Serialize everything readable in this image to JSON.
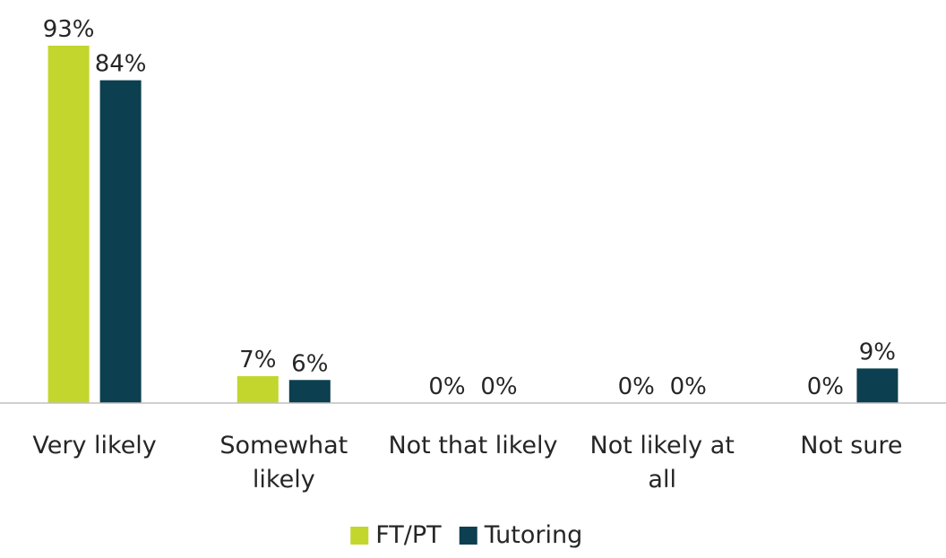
{
  "chart_data": {
    "type": "bar",
    "categories": [
      [
        "Very likely"
      ],
      [
        "Somewhat",
        "likely"
      ],
      [
        "Not that likely"
      ],
      [
        "Not likely at",
        "all"
      ],
      [
        "Not sure"
      ]
    ],
    "series": [
      {
        "name": "FT/PT",
        "color": "#c2d62e",
        "values": [
          93,
          7,
          0,
          0,
          0
        ],
        "labels": [
          "93%",
          "7%",
          "0%",
          "0%",
          "0%"
        ]
      },
      {
        "name": "Tutoring",
        "color": "#0c3f4f",
        "values": [
          84,
          6,
          0,
          0,
          9
        ],
        "labels": [
          "84%",
          "6%",
          "0%",
          "0%",
          "9%"
        ]
      }
    ],
    "ylim": [
      0,
      93
    ],
    "grid": false,
    "legend_position": "bottom",
    "axis_color": "#bfbfbf"
  }
}
